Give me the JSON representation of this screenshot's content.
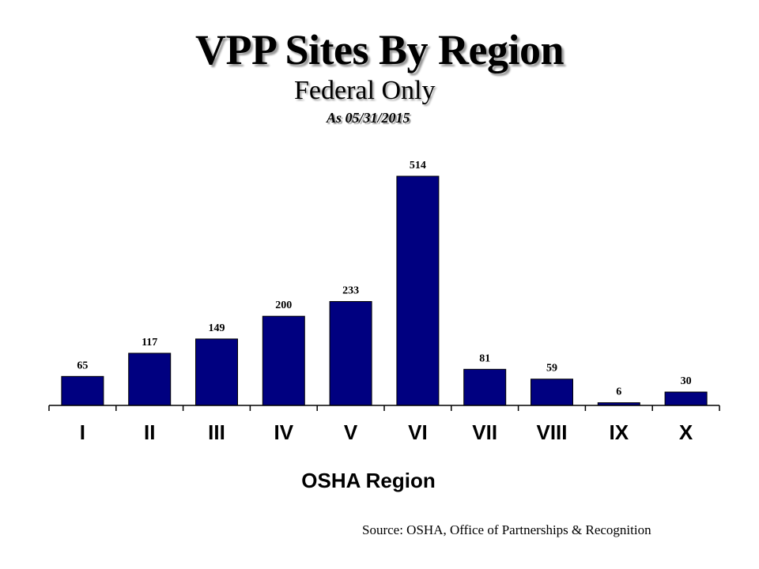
{
  "chart_data": {
    "type": "bar",
    "title": "VPP Sites By Region",
    "subtitle": "Federal Only",
    "as_of": "As 05/31/2015",
    "xlabel": "OSHA Region",
    "ylabel": "",
    "categories": [
      "I",
      "II",
      "III",
      "IV",
      "V",
      "VI",
      "VII",
      "VIII",
      "IX",
      "X"
    ],
    "values": [
      65,
      117,
      149,
      200,
      233,
      514,
      81,
      59,
      6,
      30
    ],
    "ylim": [
      0,
      514
    ],
    "bar_color": "#000080",
    "grid": false,
    "legend": "none",
    "data_labels": true
  },
  "footer": {
    "source": "Source: OSHA, Office of Partnerships & Recognition"
  }
}
